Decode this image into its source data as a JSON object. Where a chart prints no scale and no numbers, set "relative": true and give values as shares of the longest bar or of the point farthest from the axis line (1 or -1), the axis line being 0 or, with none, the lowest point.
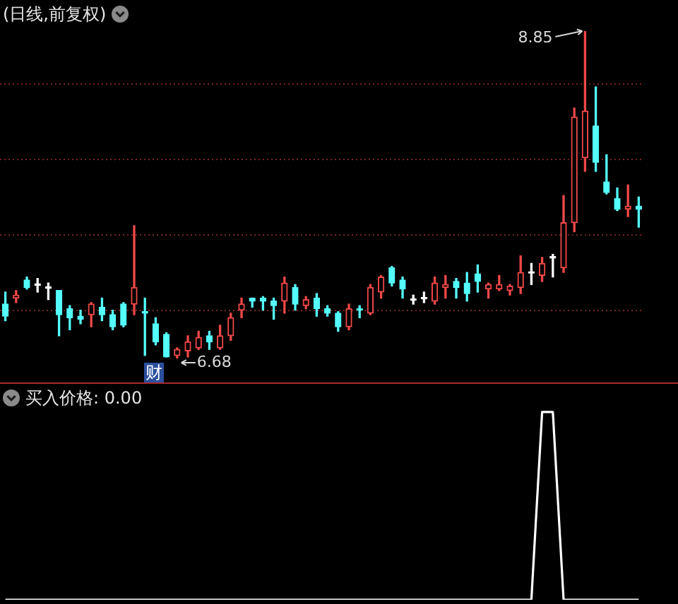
{
  "chart_data": [
    {
      "type": "candlestick",
      "title": "(日线,前复权)",
      "grid": "y",
      "yticks": [
        {
          "value": 7,
          "label": null
        },
        {
          "value": 7.5,
          "label": null
        },
        {
          "value": 8,
          "label": null
        },
        {
          "value": 8.5,
          "label": null
        }
      ],
      "categories": [
        null,
        null,
        null,
        null,
        null,
        null,
        null,
        null,
        null,
        null,
        null,
        null,
        null,
        null,
        null,
        null,
        null,
        null,
        null,
        null,
        null,
        null,
        null,
        null,
        null,
        null,
        null,
        null,
        null,
        null,
        null,
        null,
        null,
        null,
        null,
        null,
        null,
        null,
        null,
        null,
        null,
        null,
        null,
        null,
        null,
        null,
        null,
        null,
        null,
        null,
        null,
        null,
        null,
        null,
        null,
        null,
        null,
        null,
        null,
        null
      ],
      "ohlc": [
        [
          7.04,
          7.12,
          6.93,
          6.96
        ],
        [
          7.08,
          7.13,
          7.05,
          7.1
        ],
        [
          7.2,
          7.22,
          7.14,
          7.15
        ],
        [
          7.17,
          7.21,
          7.12,
          7.17
        ],
        [
          7.15,
          7.18,
          7.07,
          7.15
        ],
        [
          7.13,
          7.13,
          6.83,
          6.97
        ],
        [
          7.01,
          7.03,
          6.87,
          6.95
        ],
        [
          6.96,
          7.0,
          6.91,
          6.94
        ],
        [
          6.97,
          7.05,
          6.89,
          7.04
        ],
        [
          7.02,
          7.08,
          6.93,
          6.97
        ],
        [
          6.97,
          7.0,
          6.87,
          6.89
        ],
        [
          7.04,
          7.05,
          6.89,
          6.9
        ],
        [
          7.04,
          7.56,
          6.97,
          7.15
        ],
        [
          6.99,
          7.08,
          6.7,
          6.98
        ],
        [
          6.91,
          6.95,
          6.77,
          6.79
        ],
        [
          6.84,
          6.85,
          6.69,
          6.69
        ],
        [
          6.7,
          6.75,
          6.68,
          6.74
        ],
        [
          6.73,
          6.83,
          6.69,
          6.79
        ],
        [
          6.75,
          6.86,
          6.74,
          6.82
        ],
        [
          6.83,
          6.86,
          6.74,
          6.79
        ],
        [
          6.75,
          6.9,
          6.74,
          6.83
        ],
        [
          6.83,
          6.98,
          6.8,
          6.95
        ],
        [
          7.0,
          7.08,
          6.95,
          7.04
        ],
        [
          7.08,
          7.08,
          7.02,
          7.06
        ],
        [
          7.08,
          7.09,
          7.0,
          7.06
        ],
        [
          7.06,
          7.08,
          6.94,
          7.03
        ],
        [
          7.06,
          7.22,
          6.98,
          7.18
        ],
        [
          7.15,
          7.17,
          7.0,
          7.04
        ],
        [
          7.03,
          7.09,
          7.01,
          7.07
        ],
        [
          7.08,
          7.11,
          6.96,
          7.01
        ],
        [
          7.01,
          7.03,
          6.96,
          6.98
        ],
        [
          6.98,
          6.99,
          6.86,
          6.89
        ],
        [
          6.89,
          7.04,
          6.87,
          7.01
        ],
        [
          7.01,
          7.03,
          6.95,
          7.0
        ],
        [
          6.98,
          7.17,
          6.97,
          7.15
        ],
        [
          7.12,
          7.23,
          7.08,
          7.22
        ],
        [
          7.28,
          7.29,
          7.16,
          7.18
        ],
        [
          7.2,
          7.22,
          7.08,
          7.14
        ],
        [
          7.07,
          7.1,
          7.04,
          7.07
        ],
        [
          7.08,
          7.12,
          7.05,
          7.08
        ],
        [
          7.06,
          7.22,
          7.04,
          7.18
        ],
        [
          7.15,
          7.23,
          7.08,
          7.17
        ],
        [
          7.19,
          7.21,
          7.08,
          7.15
        ],
        [
          7.18,
          7.25,
          7.06,
          7.11
        ],
        [
          7.24,
          7.3,
          7.12,
          7.19
        ],
        [
          7.14,
          7.18,
          7.08,
          7.17
        ],
        [
          7.14,
          7.23,
          7.13,
          7.17
        ],
        [
          7.13,
          7.17,
          7.1,
          7.16
        ],
        [
          7.15,
          7.36,
          7.11,
          7.25
        ],
        [
          7.25,
          7.31,
          7.17,
          7.25
        ],
        [
          7.23,
          7.35,
          7.19,
          7.31
        ],
        [
          7.35,
          7.37,
          7.22,
          7.35
        ],
        [
          7.28,
          7.76,
          7.25,
          7.58
        ],
        [
          7.58,
          8.34,
          7.52,
          8.28
        ],
        [
          8.01,
          8.85,
          7.92,
          8.32
        ],
        [
          8.22,
          8.48,
          7.92,
          7.98
        ],
        [
          7.85,
          8.03,
          7.77,
          7.78
        ],
        [
          7.74,
          7.81,
          7.66,
          7.67
        ],
        [
          7.67,
          7.83,
          7.62,
          7.69
        ],
        [
          7.69,
          7.75,
          7.55,
          7.67
        ]
      ],
      "colors": [
        "#54fcfc",
        "#f04848",
        "#54fcfc",
        "#ffffff",
        "#ffffff",
        "#54fcfc",
        "#54fcfc",
        "#54fcfc",
        "#f04848",
        "#54fcfc",
        "#54fcfc",
        "#54fcfc",
        "#f04848",
        "#54fcfc",
        "#54fcfc",
        "#54fcfc",
        "#f04848",
        "#f04848",
        "#f04848",
        "#54fcfc",
        "#f04848",
        "#f04848",
        "#f04848",
        "#54fcfc",
        "#54fcfc",
        "#54fcfc",
        "#f04848",
        "#54fcfc",
        "#f04848",
        "#54fcfc",
        "#54fcfc",
        "#54fcfc",
        "#f04848",
        "#54fcfc",
        "#f04848",
        "#f04848",
        "#54fcfc",
        "#54fcfc",
        "#ffffff",
        "#ffffff",
        "#f04848",
        "#f04848",
        "#54fcfc",
        "#54fcfc",
        "#54fcfc",
        "#f04848",
        "#f04848",
        "#f04848",
        "#f04848",
        "#ffffff",
        "#f04848",
        "#ffffff",
        "#f04848",
        "#f04848",
        "#f04848",
        "#54fcfc",
        "#54fcfc",
        "#54fcfc",
        "#f04848",
        "#54fcfc"
      ],
      "annotations": [
        "8.85",
        "6.68",
        "财"
      ]
    },
    {
      "type": "line",
      "title": "买入价格: 0.00",
      "relative": true,
      "marker": "none",
      "categories": [
        null,
        null,
        null,
        null,
        null,
        null,
        null,
        null,
        null,
        null,
        null,
        null,
        null,
        null,
        null,
        null,
        null,
        null,
        null,
        null,
        null,
        null,
        null,
        null,
        null,
        null,
        null,
        null,
        null,
        null,
        null,
        null,
        null,
        null,
        null,
        null,
        null,
        null,
        null,
        null,
        null,
        null,
        null,
        null,
        null,
        null,
        null,
        null,
        null,
        null,
        null,
        null,
        null,
        null,
        null,
        null,
        null,
        null,
        null,
        null
      ],
      "series": [
        {
          "color": "#ffffff",
          "values": [
            0,
            0,
            0,
            0,
            0,
            0,
            0,
            0,
            0,
            0,
            0,
            0,
            0,
            0,
            0,
            0,
            0,
            0,
            0,
            0,
            0,
            0,
            0,
            0,
            0,
            0,
            0,
            0,
            0,
            0,
            0,
            0,
            0,
            0,
            0,
            0,
            0,
            0,
            0,
            0,
            0,
            0,
            0,
            0,
            0,
            0,
            0,
            0,
            0,
            0,
            1,
            1,
            0,
            0,
            0,
            0,
            0,
            0,
            0,
            0
          ]
        }
      ]
    }
  ]
}
